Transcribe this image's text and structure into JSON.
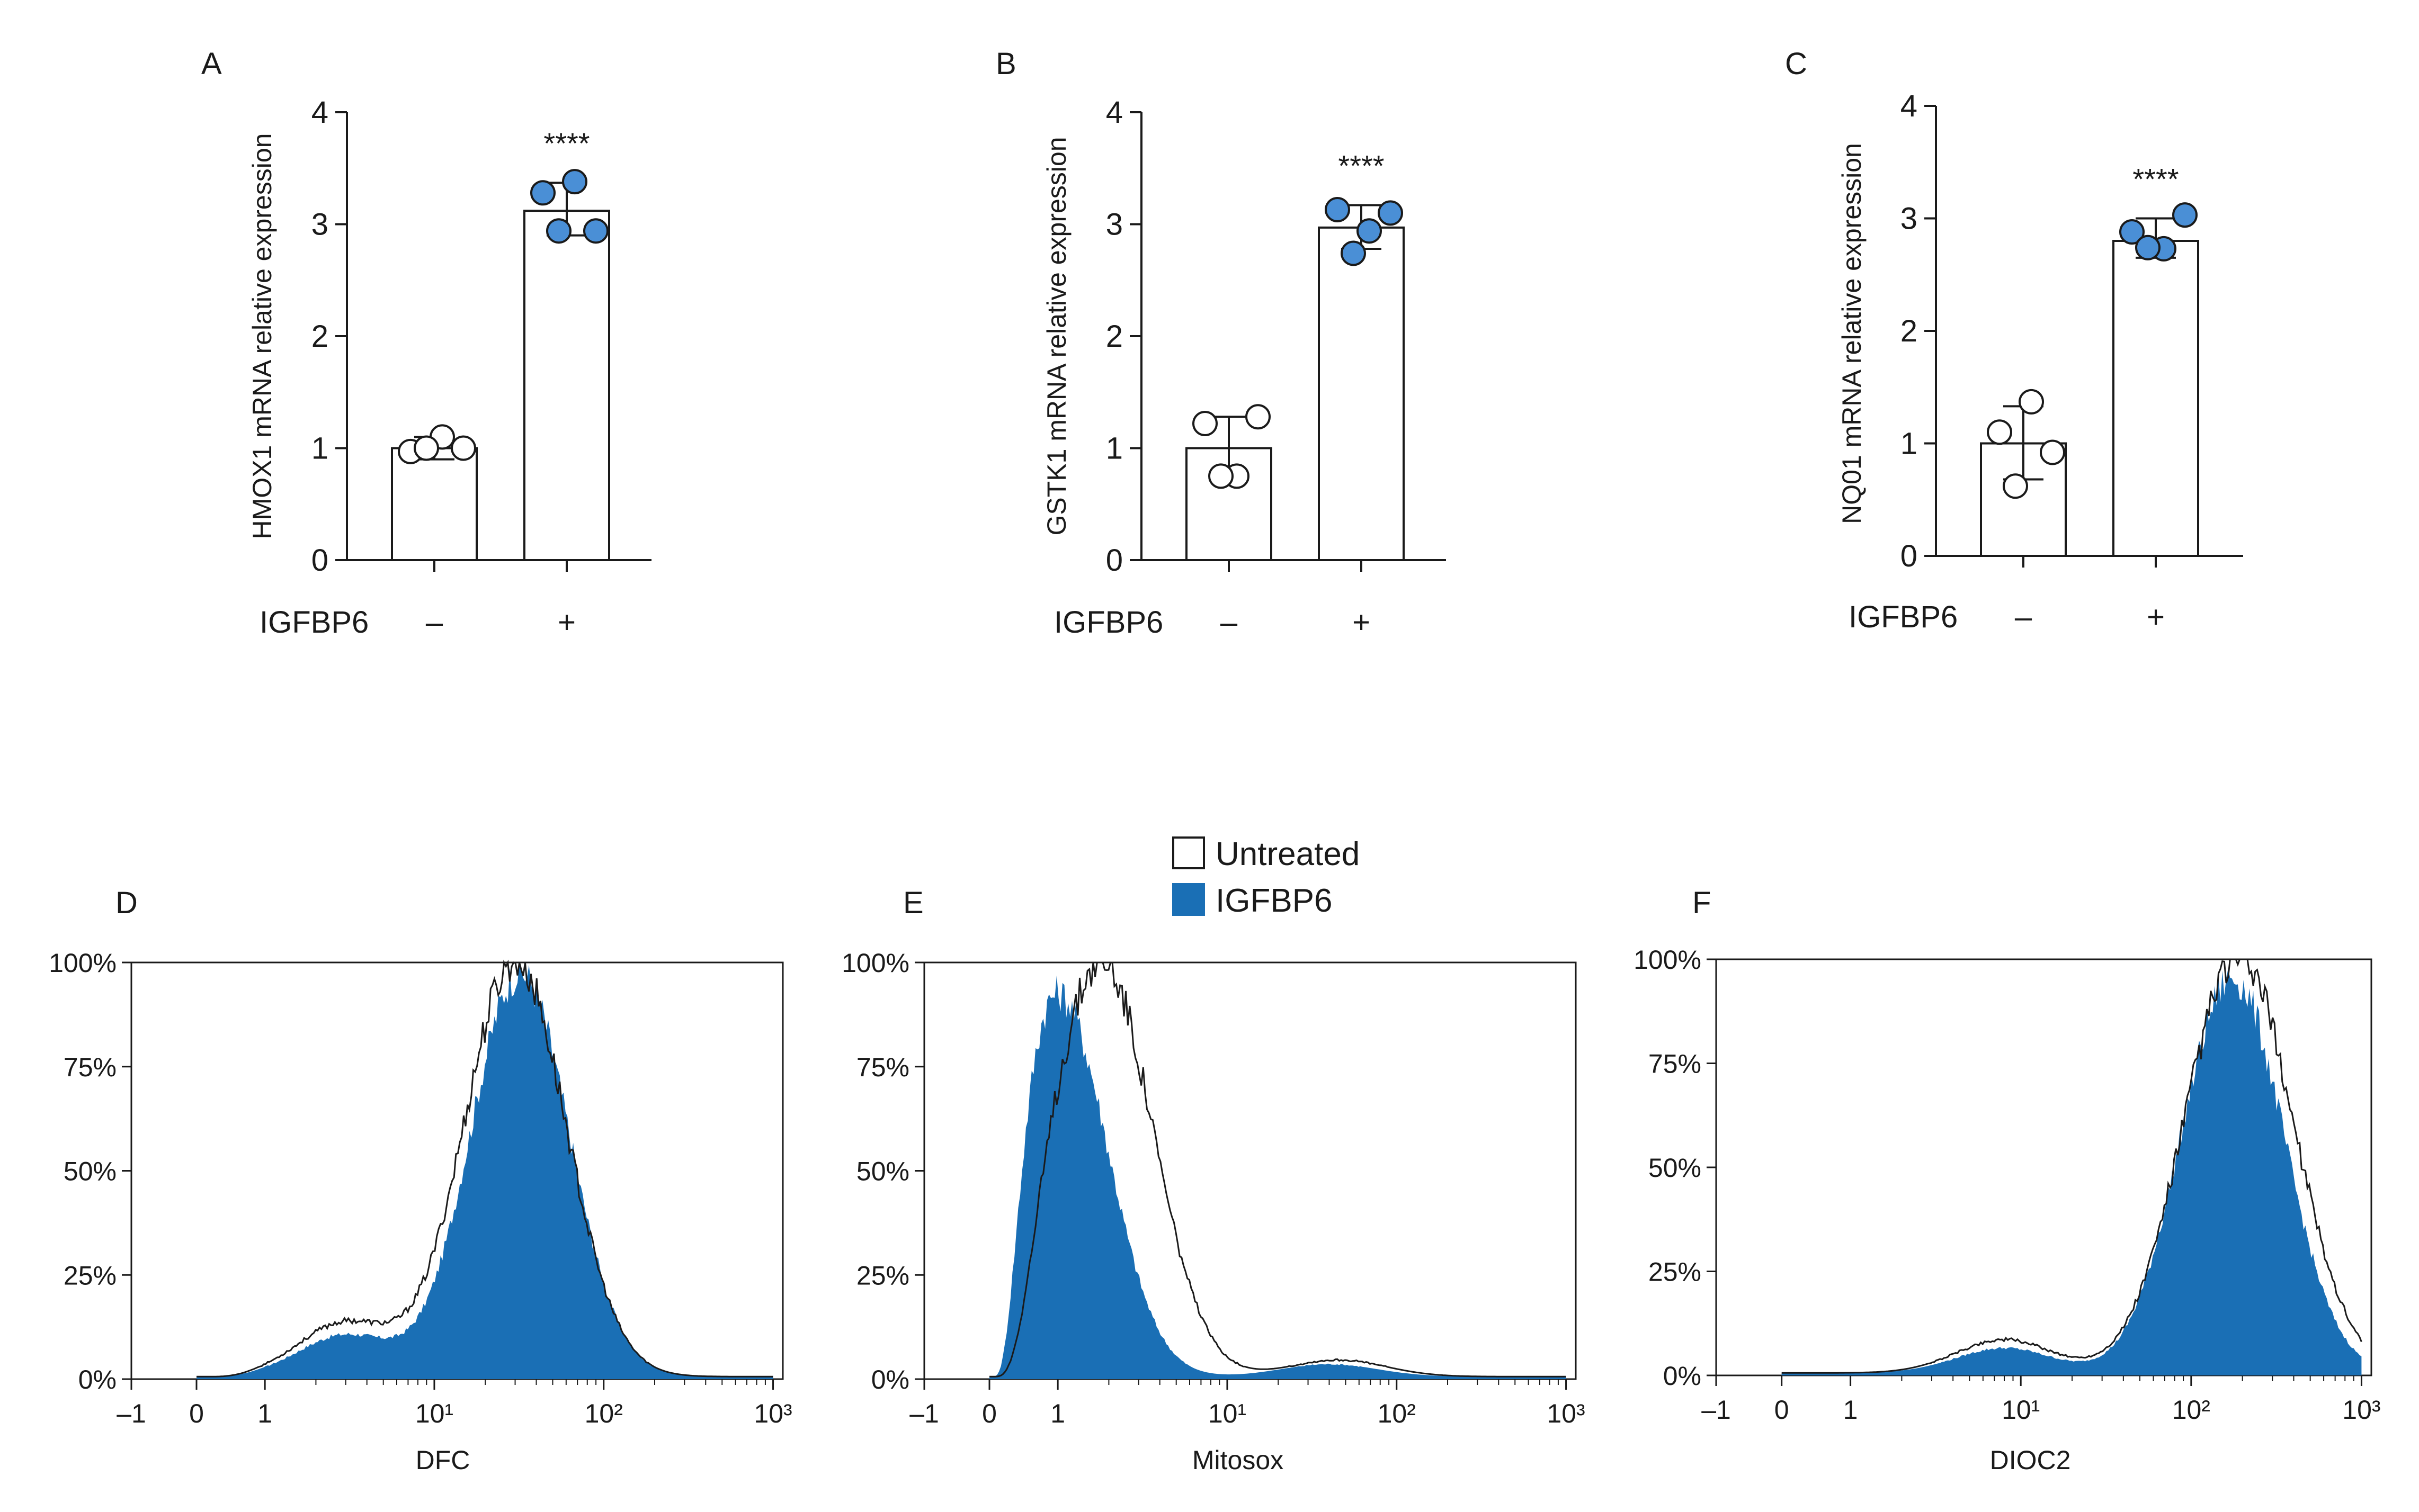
{
  "colors": {
    "accent": "#1a6fb5",
    "dot_fill": "#4a8fd6",
    "axis": "#1a1a1a",
    "background": "#ffffff"
  },
  "significance": "****",
  "legend": {
    "items": [
      {
        "label": "Untreated",
        "swatch": "#ffffff"
      },
      {
        "label": "IGFBP6",
        "swatch": "#1a6fb5"
      }
    ]
  },
  "chart_data": [
    {
      "panel": "A",
      "type": "bar",
      "ylabel": "HMOX1 mRNA relative expression",
      "ylim": [
        0,
        4
      ],
      "yticks": [
        "0",
        "1",
        "2",
        "3",
        "4"
      ],
      "group_label": "IGFBP6",
      "categories": [
        "–",
        "+"
      ],
      "values": [
        1.0,
        3.12
      ],
      "error": [
        [
          0.9,
          1.1
        ],
        [
          2.9,
          3.37
        ]
      ],
      "points": [
        [
          0.97,
          1.1,
          1.0,
          1.0
        ],
        [
          3.28,
          3.38,
          2.94,
          2.94
        ]
      ],
      "significance": "****"
    },
    {
      "panel": "B",
      "type": "bar",
      "ylabel": "GSTK1 mRNA relative expression",
      "ylim": [
        0,
        4
      ],
      "yticks": [
        "0",
        "1",
        "2",
        "3",
        "4"
      ],
      "group_label": "IGFBP6",
      "categories": [
        "–",
        "+"
      ],
      "values": [
        1.0,
        2.97
      ],
      "error": [
        [
          0.72,
          1.28
        ],
        [
          2.78,
          3.17
        ]
      ],
      "points": [
        [
          1.22,
          0.75,
          1.28,
          0.75
        ],
        [
          3.13,
          2.94,
          3.1,
          2.74
        ]
      ],
      "significance": "****"
    },
    {
      "panel": "C",
      "type": "bar",
      "ylabel": "NQ01 mRNA relative expression",
      "ylim": [
        0,
        4
      ],
      "yticks": [
        "0",
        "1",
        "2",
        "3",
        "4"
      ],
      "group_label": "IGFBP6",
      "categories": [
        "–",
        "+"
      ],
      "values": [
        1.0,
        2.8
      ],
      "error": [
        [
          0.68,
          1.33
        ],
        [
          2.65,
          3.0
        ]
      ],
      "points": [
        [
          1.1,
          1.37,
          0.92,
          0.62
        ],
        [
          2.88,
          2.73,
          3.03,
          2.74
        ]
      ],
      "significance": "****"
    },
    {
      "panel": "D",
      "type": "area",
      "xlabel": "DFC",
      "xtick_labels": [
        "–1",
        "0",
        "1",
        "10¹",
        "10²",
        "10³"
      ],
      "ytick_labels": [
        "0%",
        "25%",
        "50%",
        "75%",
        "100%"
      ],
      "ylim": [
        0,
        100
      ],
      "series": [
        {
          "name": "Untreated",
          "peak_x": 30,
          "peak_y": 100,
          "sigma_log10": 0.3,
          "shoulder_x": 3,
          "shoulder_y": 13
        },
        {
          "name": "IGFBP6",
          "peak_x": 32,
          "peak_y": 97,
          "sigma_log10": 0.29,
          "shoulder_x": 3,
          "shoulder_y": 10
        }
      ]
    },
    {
      "panel": "E",
      "type": "area",
      "xlabel": "Mitosox",
      "xtick_labels": [
        "–1",
        "0",
        "1",
        "10¹",
        "10²",
        "10³"
      ],
      "ytick_labels": [
        "0%",
        "25%",
        "50%",
        "75%",
        "100%"
      ],
      "ylim": [
        0,
        100
      ],
      "series": [
        {
          "name": "Untreated",
          "peak_x": 1.8,
          "peak_y": 100,
          "sigma_log10": 0.3,
          "shoulder_x": 45,
          "shoulder_y": 4
        },
        {
          "name": "IGFBP6",
          "peak_x": 1.0,
          "peak_y": 92,
          "sigma_log10": 0.29,
          "shoulder_x": 40,
          "shoulder_y": 3
        }
      ]
    },
    {
      "panel": "F",
      "type": "area",
      "xlabel": "DIOC2",
      "xtick_labels": [
        "–1",
        "0",
        "1",
        "10¹",
        "10²",
        "10³"
      ],
      "ytick_labels": [
        "0%",
        "25%",
        "50%",
        "75%",
        "100%"
      ],
      "ylim": [
        0,
        100
      ],
      "series": [
        {
          "name": "Untreated",
          "peak_x": 190,
          "peak_y": 100,
          "sigma_log10": 0.32,
          "shoulder_x": 8,
          "shoulder_y": 8
        },
        {
          "name": "IGFBP6",
          "peak_x": 175,
          "peak_y": 95,
          "sigma_log10": 0.3,
          "shoulder_x": 8,
          "shoulder_y": 6
        }
      ]
    }
  ]
}
